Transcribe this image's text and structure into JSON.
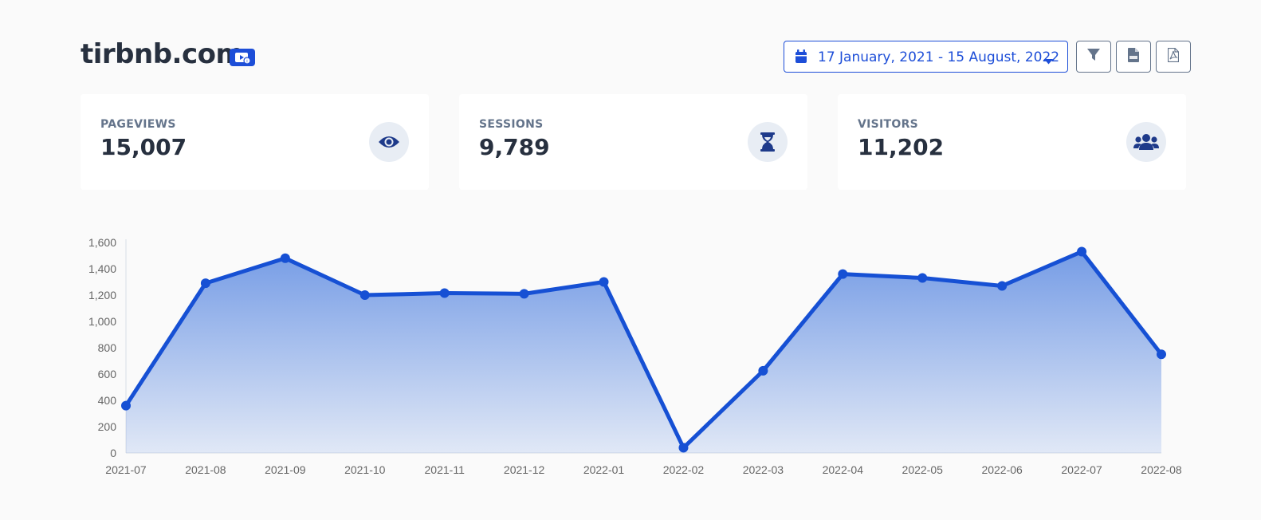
{
  "header": {
    "site_title": "tirbnb.com",
    "date_range": "17 January, 2021 - 15 August, 2022"
  },
  "icons": {
    "site_badge": "video-play-icon",
    "calendar": "calendar-icon",
    "caret": "caret-down-icon",
    "filter": "filter-icon",
    "csv": "csv-file-icon",
    "pdf": "pdf-file-icon",
    "pageviews": "eye-icon",
    "sessions": "hourglass-icon",
    "visitors": "users-icon"
  },
  "stats": [
    {
      "label": "PAGEVIEWS",
      "value": "15,007"
    },
    {
      "label": "SESSIONS",
      "value": "9,789"
    },
    {
      "label": "VISITORS",
      "value": "11,202"
    }
  ],
  "colors": {
    "accent": "#1d4ed8",
    "line": "#1650d4",
    "icon_bg": "#e8edf4"
  },
  "chart_data": {
    "type": "area",
    "categories": [
      "2021-07",
      "2021-08",
      "2021-09",
      "2021-10",
      "2021-11",
      "2021-12",
      "2022-01",
      "2022-02",
      "2022-03",
      "2022-04",
      "2022-05",
      "2022-06",
      "2022-07",
      "2022-08"
    ],
    "series": [
      {
        "values": [
          360,
          1290,
          1480,
          1200,
          1215,
          1210,
          1300,
          40,
          625,
          1360,
          1330,
          1270,
          1530,
          750
        ]
      }
    ],
    "y_ticks": [
      "0",
      "200",
      "400",
      "600",
      "800",
      "1,000",
      "1,200",
      "1,400",
      "1,600"
    ],
    "ylim": [
      0,
      1600
    ],
    "grid": false,
    "legend": "none",
    "title": "",
    "xlabel": "",
    "ylabel": ""
  }
}
